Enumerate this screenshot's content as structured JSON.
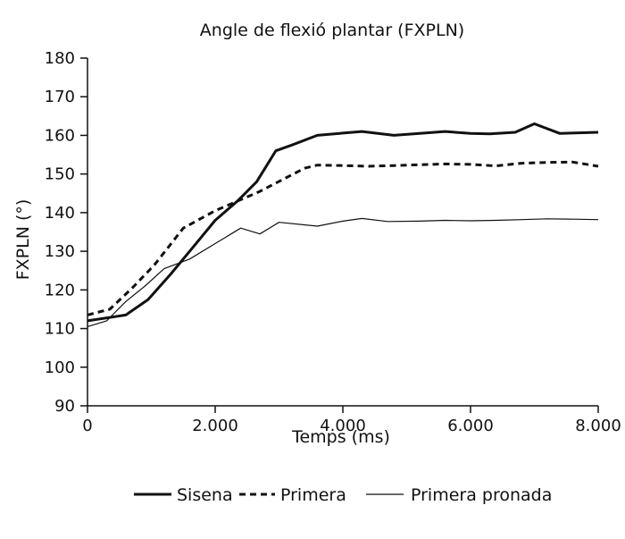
{
  "chart_data": {
    "type": "line",
    "title": "Angle de flexió plantar (FXPLN)",
    "xlabel": "Temps (ms)",
    "ylabel": "FXPLN (°)",
    "xlim": [
      0,
      8000
    ],
    "ylim": [
      90,
      180
    ],
    "x_ticks": [
      0,
      2000,
      4000,
      6000,
      8000
    ],
    "x_tick_labels": [
      "0",
      "2.000",
      "4.000",
      "6.000",
      "8.000"
    ],
    "y_ticks": [
      90,
      100,
      110,
      120,
      130,
      140,
      150,
      160,
      170,
      180
    ],
    "y_tick_labels": [
      "90",
      "100",
      "110",
      "120",
      "130",
      "140",
      "150",
      "160",
      "170",
      "180"
    ],
    "grid": false,
    "legend_position": "bottom",
    "series": [
      {
        "name": "Sisena",
        "style": "thick-solid",
        "color": "#111111",
        "x": [
          0,
          600,
          950,
          1300,
          1650,
          2000,
          2350,
          2650,
          2950,
          3200,
          3600,
          4000,
          4300,
          4800,
          5200,
          5600,
          6000,
          6300,
          6700,
          7000,
          7400,
          8000
        ],
        "y": [
          112,
          113.5,
          117.5,
          124,
          131,
          138,
          143,
          148,
          156,
          157.5,
          160,
          160.6,
          161,
          160,
          160.5,
          161,
          160.5,
          160.4,
          160.8,
          163,
          160.5,
          160.8
        ]
      },
      {
        "name": "Primera",
        "style": "dashed",
        "color": "#111111",
        "x": [
          0,
          350,
          700,
          1050,
          1500,
          2000,
          2350,
          2700,
          3050,
          3400,
          3600,
          4000,
          4400,
          4800,
          5200,
          5600,
          6000,
          6400,
          6800,
          7200,
          7600,
          8000
        ],
        "y": [
          113.5,
          115,
          120.5,
          126.5,
          136,
          140.5,
          143,
          145.5,
          148.5,
          151.5,
          152.3,
          152.2,
          152.0,
          152.2,
          152.4,
          152.6,
          152.5,
          152.1,
          152.8,
          153.0,
          153.1,
          152.0
        ]
      },
      {
        "name": "Primera pronada",
        "style": "thin-solid",
        "color": "#111111",
        "x": [
          0,
          300,
          600,
          900,
          1200,
          1600,
          2000,
          2400,
          2700,
          3000,
          3600,
          4000,
          4300,
          4700,
          5200,
          5600,
          6000,
          6400,
          6800,
          7200,
          7600,
          8000
        ],
        "y": [
          110.5,
          112,
          117,
          121,
          125.5,
          128,
          132,
          136,
          134.5,
          137.5,
          136.5,
          137.8,
          138.5,
          137.7,
          137.8,
          138,
          137.9,
          138,
          138.2,
          138.4,
          138.3,
          138.2
        ]
      }
    ]
  }
}
